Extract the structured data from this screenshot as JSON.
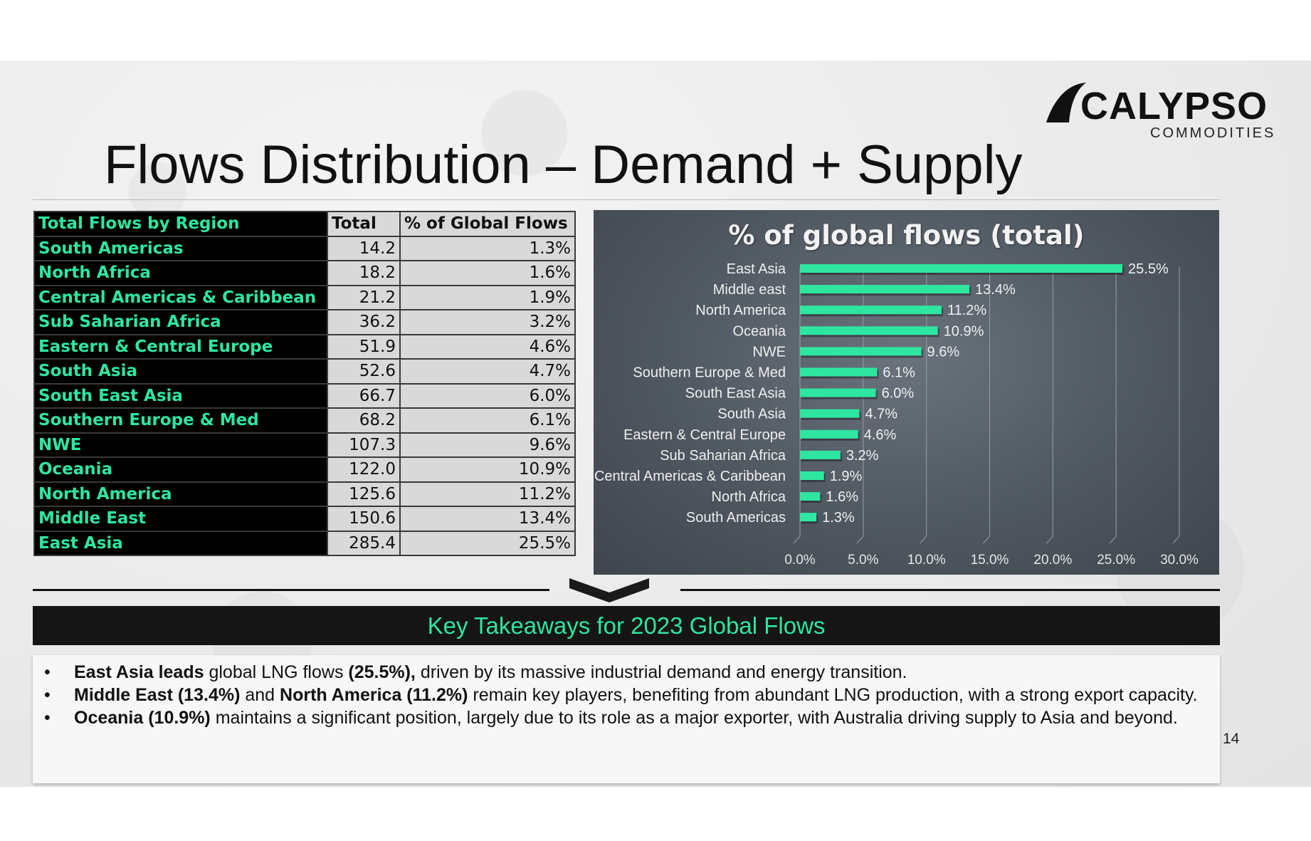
{
  "logo": {
    "name": "CALYPSO",
    "sub": "COMMODITIES"
  },
  "title": "Flows Distribution – Demand + Supply",
  "table": {
    "headers": [
      "Total Flows by Region",
      "Total",
      "% of Global Flows"
    ],
    "rows": [
      [
        "South Americas",
        "14.2",
        "1.3%"
      ],
      [
        "North Africa",
        "18.2",
        "1.6%"
      ],
      [
        "Central Americas & Caribbean",
        "21.2",
        "1.9%"
      ],
      [
        "Sub Saharian Africa",
        "36.2",
        "3.2%"
      ],
      [
        "Eastern & Central Europe",
        "51.9",
        "4.6%"
      ],
      [
        "South Asia",
        "52.6",
        "4.7%"
      ],
      [
        "South East Asia",
        "66.7",
        "6.0%"
      ],
      [
        "Southern Europe & Med",
        "68.2",
        "6.1%"
      ],
      [
        "NWE",
        "107.3",
        "9.6%"
      ],
      [
        "Oceania",
        "122.0",
        "10.9%"
      ],
      [
        "North America",
        "125.6",
        "11.2%"
      ],
      [
        "Middle East",
        "150.6",
        "13.4%"
      ],
      [
        "East Asia",
        "285.4",
        "25.5%"
      ]
    ]
  },
  "chart_data": {
    "type": "bar",
    "orientation": "horizontal",
    "title": "% of global flows (total)",
    "categories": [
      "East Asia",
      "Middle east",
      "North America",
      "Oceania",
      "NWE",
      "Southern Europe & Med",
      "South East Asia",
      "South Asia",
      "Eastern & Central Europe",
      "Sub Saharian Africa",
      "Central Americas & Caribbean",
      "North Africa",
      "South Americas"
    ],
    "values": [
      25.5,
      13.4,
      11.2,
      10.9,
      9.6,
      6.1,
      6.0,
      4.7,
      4.6,
      3.2,
      1.9,
      1.6,
      1.3
    ],
    "data_labels": [
      "25.5%",
      "13.4%",
      "11.2%",
      "10.9%",
      "9.6%",
      "6.1%",
      "6.0%",
      "4.7%",
      "4.6%",
      "3.2%",
      "1.9%",
      "1.6%",
      "1.3%"
    ],
    "xlim": [
      0,
      30
    ],
    "xticks": [
      "0.0%",
      "5.0%",
      "10.0%",
      "15.0%",
      "20.0%",
      "25.0%",
      "30.0%"
    ],
    "grid": true,
    "legend": "none",
    "bar_color": "#2ee6a0"
  },
  "takeaways": {
    "heading": "Key Takeaways for 2023 Global Flows",
    "b1": {
      "s1": "East Asia leads",
      "t1": " global LNG flows ",
      "s2": "(25.5%),",
      "t2": " driven by its massive industrial demand and energy transition."
    },
    "b2": {
      "s1": "Middle East (13.4%)",
      "t1": " and ",
      "s2": "North America (11.2%)",
      "t2": " remain key players, benefiting from abundant LNG production, with a strong export capacity."
    },
    "b3": {
      "s1": "Oceania (10.9%)",
      "t1": " maintains a significant position, largely due to its role as a major exporter, with Australia driving supply to Asia and beyond."
    }
  },
  "page_number": "14",
  "colors": {
    "accent": "#2ee6a0",
    "dark": "#000000",
    "panel": "#4f5760"
  }
}
